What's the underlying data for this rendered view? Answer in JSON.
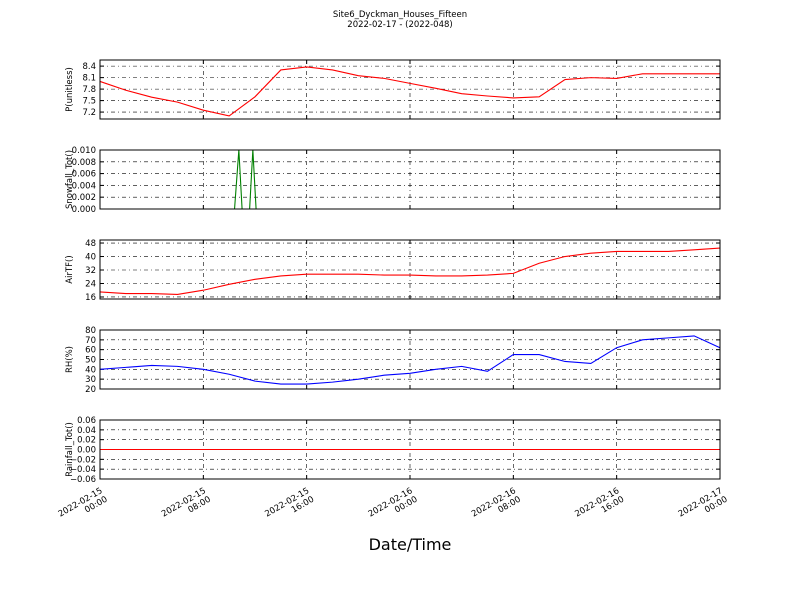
{
  "figure": {
    "title": "Site6_Dyckman_Houses_Fifteen",
    "subtitle": "2022-02-17 - (2022-048)",
    "xlabel": "Date/Time",
    "xlim": [
      "2022-02-15 00:00",
      "2022-02-17 00:00"
    ],
    "xticks": [
      {
        "value": "2022-02-15 00:00",
        "label": "2022-02-15\n00:00"
      },
      {
        "value": "2022-02-15 08:00",
        "label": "2022-02-15\n08:00"
      },
      {
        "value": "2022-02-15 16:00",
        "label": "2022-02-15\n16:00"
      },
      {
        "value": "2022-02-16 00:00",
        "label": "2022-02-16\n00:00"
      },
      {
        "value": "2022-02-16 08:00",
        "label": "2022-02-16\n08:00"
      },
      {
        "value": "2022-02-16 16:00",
        "label": "2022-02-16\n16:00"
      },
      {
        "value": "2022-02-17 00:00",
        "label": "2022-02-17\n00:00"
      }
    ],
    "grid": true
  },
  "chart_data": [
    {
      "type": "line",
      "ylabel": "P(unitless)",
      "color": "#ff0000",
      "ylim": [
        7.02,
        8.56
      ],
      "yticks": [
        7.2,
        7.5,
        7.8,
        8.1,
        8.4
      ],
      "x": [
        "2022-02-15 00:00",
        "2022-02-15 02:00",
        "2022-02-15 04:00",
        "2022-02-15 06:00",
        "2022-02-15 08:00",
        "2022-02-15 10:00",
        "2022-02-15 12:00",
        "2022-02-15 14:00",
        "2022-02-15 16:00",
        "2022-02-15 18:00",
        "2022-02-15 20:00",
        "2022-02-15 22:00",
        "2022-02-16 00:00",
        "2022-02-16 02:00",
        "2022-02-16 04:00",
        "2022-02-16 06:00",
        "2022-02-16 08:00",
        "2022-02-16 10:00",
        "2022-02-16 12:00",
        "2022-02-16 14:00",
        "2022-02-16 16:00",
        "2022-02-16 18:00",
        "2022-02-16 20:00",
        "2022-02-16 22:00",
        "2022-02-17 00:00"
      ],
      "values": [
        8.0,
        7.77,
        7.59,
        7.46,
        7.25,
        7.1,
        7.6,
        8.3,
        8.38,
        8.3,
        8.15,
        8.08,
        7.95,
        7.82,
        7.68,
        7.62,
        7.57,
        7.6,
        8.05,
        8.1,
        8.08,
        8.2,
        8.2,
        8.2,
        8.2
      ]
    },
    {
      "type": "line",
      "ylabel": "Snowfall_Tot()",
      "color": "#008000",
      "ylim": [
        0,
        0.01
      ],
      "yticks": [
        {
          "value": 0,
          "label": "0.000"
        },
        {
          "value": 0.002,
          "label": "0.002"
        },
        {
          "value": 0.004,
          "label": "0.004"
        },
        {
          "value": 0.006,
          "label": "0.006"
        },
        {
          "value": 0.008,
          "label": "0.008"
        },
        {
          "value": 0.01,
          "label": "0.010"
        }
      ],
      "x": [
        "2022-02-15 00:00",
        "2022-02-15 10:25",
        "2022-02-15 10:45",
        "2022-02-15 11:00",
        "2022-02-15 11:35",
        "2022-02-15 11:50",
        "2022-02-15 12:05",
        "2022-02-17 00:00"
      ],
      "values": [
        0,
        0,
        0.01,
        0,
        0,
        0.01,
        0,
        0
      ]
    },
    {
      "type": "line",
      "ylabel": "AirTF()",
      "color": "#ff0000",
      "ylim": [
        14.8,
        49.8
      ],
      "yticks": [
        16,
        24,
        32,
        40,
        48
      ],
      "x": [
        "2022-02-15 00:00",
        "2022-02-15 02:00",
        "2022-02-15 04:00",
        "2022-02-15 06:00",
        "2022-02-15 08:00",
        "2022-02-15 10:00",
        "2022-02-15 12:00",
        "2022-02-15 14:00",
        "2022-02-15 16:00",
        "2022-02-15 18:00",
        "2022-02-15 20:00",
        "2022-02-15 22:00",
        "2022-02-16 00:00",
        "2022-02-16 02:00",
        "2022-02-16 04:00",
        "2022-02-16 06:00",
        "2022-02-16 08:00",
        "2022-02-16 10:00",
        "2022-02-16 12:00",
        "2022-02-16 14:00",
        "2022-02-16 16:00",
        "2022-02-16 18:00",
        "2022-02-16 20:00",
        "2022-02-16 22:00",
        "2022-02-17 00:00"
      ],
      "values": [
        19,
        18,
        18,
        17.5,
        20,
        23.5,
        26.5,
        28.5,
        29.5,
        29.5,
        29.5,
        29,
        29,
        28.5,
        28.5,
        29,
        30,
        36,
        40,
        42,
        43,
        43,
        43,
        44,
        45
      ]
    },
    {
      "type": "line",
      "ylabel": "RH(%)",
      "color": "#0000ff",
      "ylim": [
        20,
        80
      ],
      "yticks": [
        20,
        30,
        40,
        50,
        60,
        70,
        80
      ],
      "x": [
        "2022-02-15 00:00",
        "2022-02-15 02:00",
        "2022-02-15 04:00",
        "2022-02-15 06:00",
        "2022-02-15 08:00",
        "2022-02-15 10:00",
        "2022-02-15 12:00",
        "2022-02-15 14:00",
        "2022-02-15 16:00",
        "2022-02-15 18:00",
        "2022-02-15 20:00",
        "2022-02-15 22:00",
        "2022-02-16 00:00",
        "2022-02-16 02:00",
        "2022-02-16 04:00",
        "2022-02-16 06:00",
        "2022-02-16 08:00",
        "2022-02-16 10:00",
        "2022-02-16 12:00",
        "2022-02-16 14:00",
        "2022-02-16 16:00",
        "2022-02-16 18:00",
        "2022-02-16 20:00",
        "2022-02-16 22:00",
        "2022-02-17 00:00"
      ],
      "values": [
        40,
        42,
        44,
        43,
        40,
        35,
        28,
        25,
        25,
        27,
        30,
        34,
        36,
        40,
        43,
        38,
        55,
        55,
        48,
        46,
        62,
        70,
        72,
        74,
        62
      ]
    },
    {
      "type": "line",
      "ylabel": "Rainfall_Tot()",
      "color": "#ff0000",
      "ylim": [
        -0.06,
        0.06
      ],
      "yticks": [
        {
          "value": -0.06,
          "label": "−0.06"
        },
        {
          "value": -0.04,
          "label": "−0.04"
        },
        {
          "value": -0.02,
          "label": "−0.02"
        },
        {
          "value": 0,
          "label": "0.00"
        },
        {
          "value": 0.02,
          "label": "0.02"
        },
        {
          "value": 0.04,
          "label": "0.04"
        },
        {
          "value": 0.06,
          "label": "0.06"
        }
      ],
      "x": [
        "2022-02-15 00:00",
        "2022-02-17 00:00"
      ],
      "values": [
        0,
        0
      ]
    }
  ]
}
